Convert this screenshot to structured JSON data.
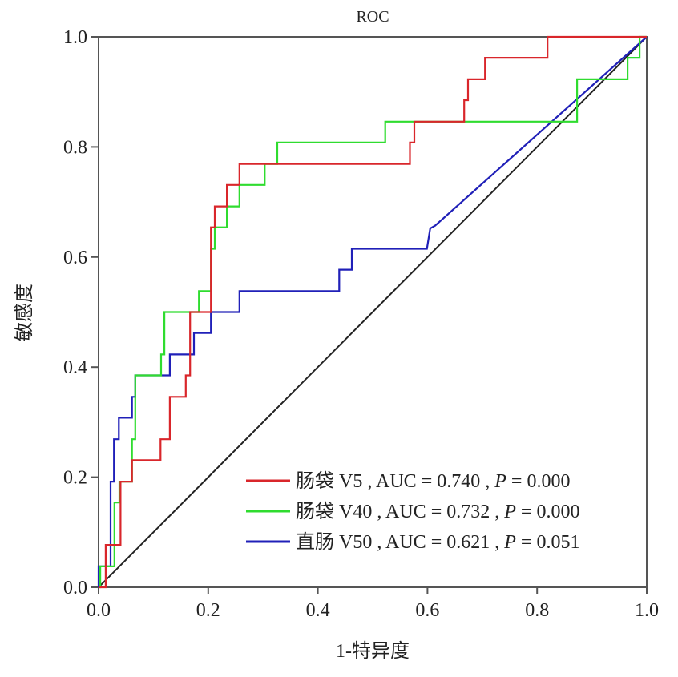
{
  "chart_data": {
    "type": "line",
    "title": "ROC",
    "xlabel": "1-特异度",
    "ylabel": "敏感度",
    "xlim": [
      0,
      1
    ],
    "ylim": [
      0,
      1
    ],
    "xticks": [
      "0.0",
      "0.2",
      "0.4",
      "0.6",
      "0.8",
      "1.0"
    ],
    "yticks": [
      "0.0",
      "0.2",
      "0.4",
      "0.6",
      "0.8",
      "1.0"
    ],
    "grid": false,
    "legend_position": "bottom-right",
    "reference_line": {
      "name": "diagonal",
      "color": "#222222",
      "points": [
        [
          0,
          0
        ],
        [
          1,
          1
        ]
      ]
    },
    "series": [
      {
        "name": "肠袋V5",
        "legend": "肠袋 V5 , AUC = 0.740 , P = 0.000",
        "label": "肠袋 V5",
        "auc": "0.740",
        "p": "0.000",
        "color": "#d9262b",
        "points": [
          [
            0,
            0
          ],
          [
            0.013,
            0
          ],
          [
            0.013,
            0.077
          ],
          [
            0.04,
            0.077
          ],
          [
            0.04,
            0.154
          ],
          [
            0.04,
            0.192
          ],
          [
            0.061,
            0.192
          ],
          [
            0.061,
            0.231
          ],
          [
            0.113,
            0.231
          ],
          [
            0.113,
            0.269
          ],
          [
            0.13,
            0.269
          ],
          [
            0.13,
            0.346
          ],
          [
            0.159,
            0.346
          ],
          [
            0.159,
            0.385
          ],
          [
            0.167,
            0.385
          ],
          [
            0.167,
            0.5
          ],
          [
            0.205,
            0.5
          ],
          [
            0.205,
            0.654
          ],
          [
            0.212,
            0.654
          ],
          [
            0.212,
            0.692
          ],
          [
            0.234,
            0.692
          ],
          [
            0.234,
            0.731
          ],
          [
            0.257,
            0.731
          ],
          [
            0.257,
            0.769
          ],
          [
            0.568,
            0.769
          ],
          [
            0.568,
            0.808
          ],
          [
            0.576,
            0.808
          ],
          [
            0.576,
            0.846
          ],
          [
            0.667,
            0.846
          ],
          [
            0.667,
            0.885
          ],
          [
            0.674,
            0.885
          ],
          [
            0.674,
            0.923
          ],
          [
            0.705,
            0.923
          ],
          [
            0.705,
            0.962
          ],
          [
            0.819,
            0.962
          ],
          [
            0.819,
            1
          ],
          [
            1,
            1
          ]
        ]
      },
      {
        "name": "肠袋V40",
        "legend": "肠袋 V40 , AUC = 0.732 , P = 0.000",
        "label": "肠袋 V40",
        "auc": "0.732",
        "p": "0.000",
        "color": "#2fdc2f",
        "points": [
          [
            0,
            0
          ],
          [
            0.003,
            0
          ],
          [
            0.003,
            0.038
          ],
          [
            0.029,
            0.038
          ],
          [
            0.029,
            0.154
          ],
          [
            0.038,
            0.154
          ],
          [
            0.038,
            0.192
          ],
          [
            0.061,
            0.192
          ],
          [
            0.061,
            0.269
          ],
          [
            0.067,
            0.269
          ],
          [
            0.067,
            0.385
          ],
          [
            0.114,
            0.385
          ],
          [
            0.114,
            0.423
          ],
          [
            0.12,
            0.423
          ],
          [
            0.12,
            0.5
          ],
          [
            0.183,
            0.5
          ],
          [
            0.183,
            0.538
          ],
          [
            0.205,
            0.538
          ],
          [
            0.205,
            0.615
          ],
          [
            0.212,
            0.615
          ],
          [
            0.212,
            0.654
          ],
          [
            0.234,
            0.654
          ],
          [
            0.234,
            0.692
          ],
          [
            0.257,
            0.692
          ],
          [
            0.257,
            0.731
          ],
          [
            0.303,
            0.731
          ],
          [
            0.303,
            0.769
          ],
          [
            0.326,
            0.769
          ],
          [
            0.326,
            0.808
          ],
          [
            0.523,
            0.808
          ],
          [
            0.523,
            0.846
          ],
          [
            0.873,
            0.846
          ],
          [
            0.873,
            0.923
          ],
          [
            0.965,
            0.923
          ],
          [
            0.965,
            0.962
          ],
          [
            0.987,
            0.962
          ],
          [
            0.987,
            1
          ],
          [
            1,
            1
          ]
        ]
      },
      {
        "name": "直肠V50",
        "legend": "直肠 V50 , AUC = 0.621 , P = 0.051",
        "label": "直肠 V50",
        "auc": "0.621",
        "p": "0.051",
        "color": "#2020b8",
        "points": [
          [
            0,
            0
          ],
          [
            0,
            0.038
          ],
          [
            0.022,
            0.038
          ],
          [
            0.022,
            0.192
          ],
          [
            0.028,
            0.192
          ],
          [
            0.028,
            0.269
          ],
          [
            0.037,
            0.269
          ],
          [
            0.037,
            0.308
          ],
          [
            0.061,
            0.308
          ],
          [
            0.061,
            0.346
          ],
          [
            0.067,
            0.346
          ],
          [
            0.067,
            0.385
          ],
          [
            0.13,
            0.385
          ],
          [
            0.13,
            0.423
          ],
          [
            0.174,
            0.423
          ],
          [
            0.174,
            0.462
          ],
          [
            0.205,
            0.462
          ],
          [
            0.205,
            0.5
          ],
          [
            0.257,
            0.5
          ],
          [
            0.257,
            0.538
          ],
          [
            0.439,
            0.538
          ],
          [
            0.439,
            0.577
          ],
          [
            0.462,
            0.577
          ],
          [
            0.462,
            0.615
          ],
          [
            0.599,
            0.615
          ],
          [
            0.605,
            0.652
          ],
          [
            0.614,
            0.657
          ],
          [
            1,
            1
          ]
        ]
      }
    ]
  }
}
